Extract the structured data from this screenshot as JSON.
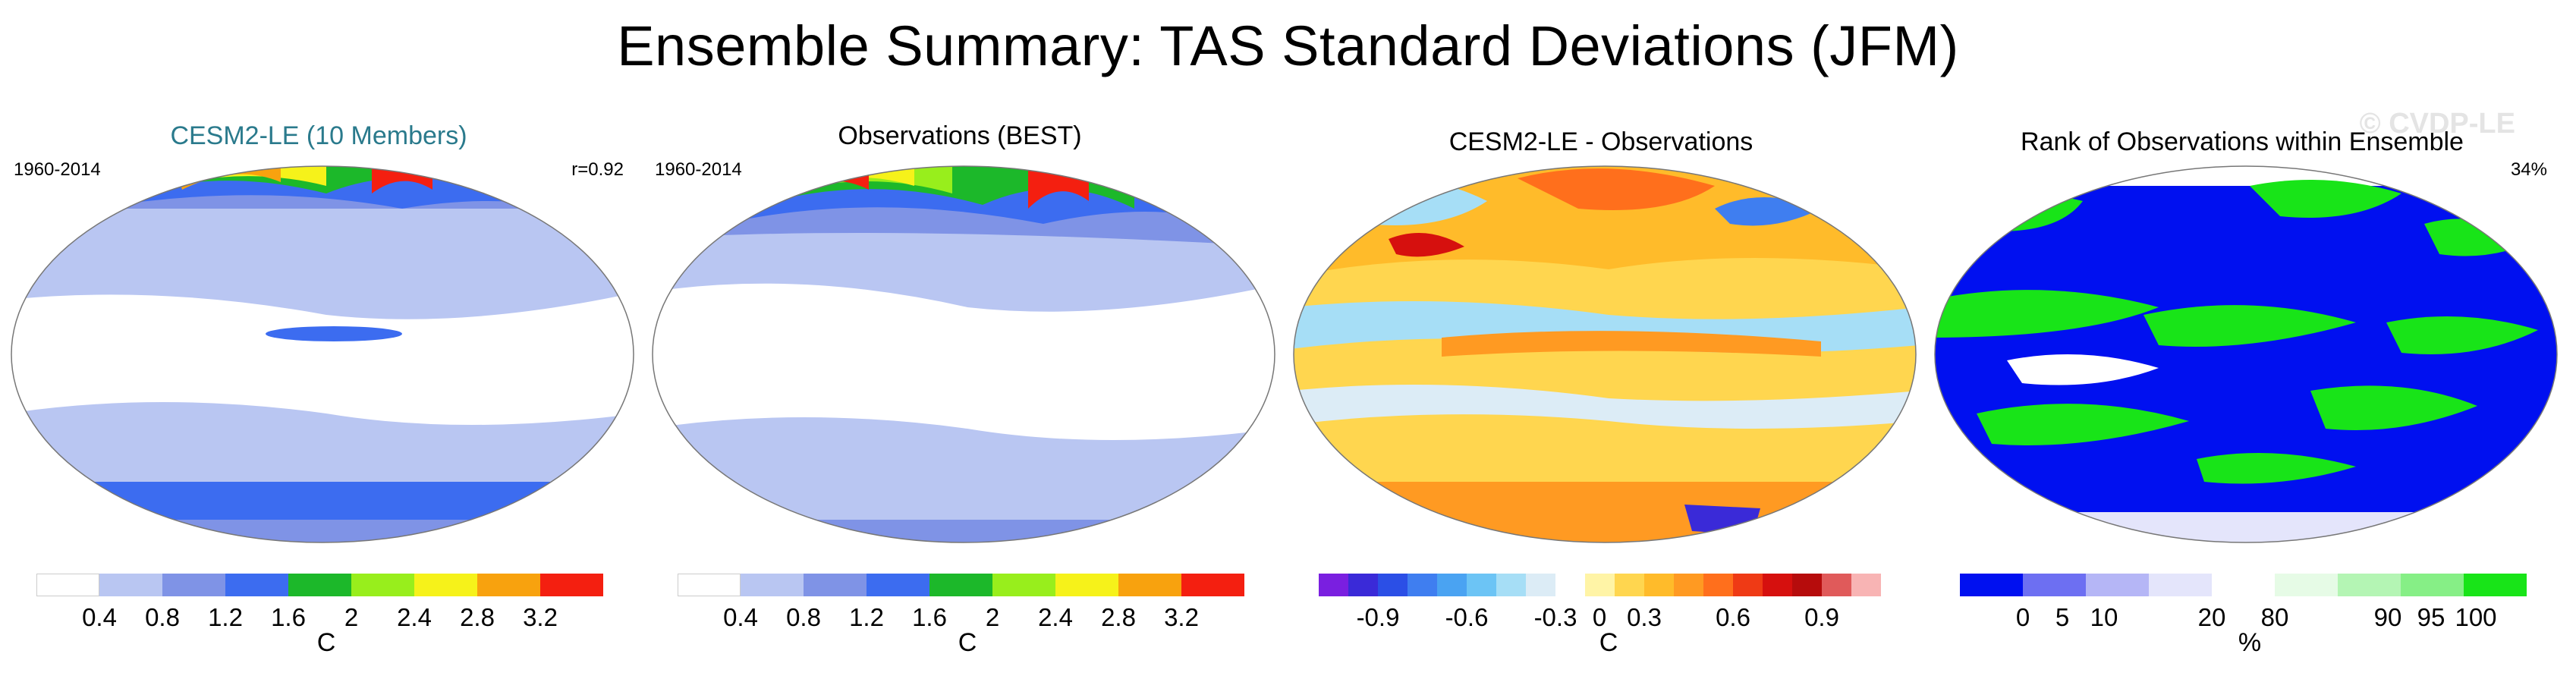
{
  "title": "Ensemble Summary: TAS Standard Deviations (JFM)",
  "watermark": "© CVDP-LE",
  "panels": [
    {
      "title": "CESM2-LE (10 Members)",
      "title_color": "#2a7a8c",
      "left_tag": "1960-2014",
      "right_tag": "r=0.92",
      "colorbar": {
        "colors": [
          "#ffffff",
          "#b9c6f2",
          "#7f93e6",
          "#3c6cf0",
          "#1cb82a",
          "#98ee1c",
          "#f6f21a",
          "#f8a20e",
          "#f41f10"
        ],
        "ticks": [
          "0.4",
          "0.8",
          "1.2",
          "1.6",
          "2",
          "2.4",
          "2.8",
          "3.2"
        ],
        "unit": "C"
      }
    },
    {
      "title": "Observations (BEST)",
      "left_tag": "1960-2014",
      "right_tag": "",
      "colorbar": {
        "colors": [
          "#ffffff",
          "#b9c6f2",
          "#7f93e6",
          "#3c6cf0",
          "#1cb82a",
          "#98ee1c",
          "#f6f21a",
          "#f8a20e",
          "#f41f10"
        ],
        "ticks": [
          "0.4",
          "0.8",
          "1.2",
          "1.6",
          "2",
          "2.4",
          "2.8",
          "3.2"
        ],
        "unit": "C"
      }
    },
    {
      "title": "CESM2-LE - Observations",
      "left_tag": "",
      "right_tag": "",
      "colorbar": {
        "colors": [
          "#7a1fe0",
          "#3a2ad8",
          "#2b4fe6",
          "#3f7ef0",
          "#4aa3f2",
          "#6cc4f5",
          "#a6def6",
          "#dcecf6",
          "#ffffff",
          "#fff4a6",
          "#ffd64f",
          "#ffbb2a",
          "#ff9a22",
          "#ff6f1c",
          "#ef3a15",
          "#d6100e",
          "#b60c0c",
          "#e05a5a",
          "#f8b4b4"
        ],
        "ticks": [
          "-0.9",
          "-0.6",
          "-0.3",
          "0",
          "0.3",
          "0.6",
          "0.9"
        ],
        "unit": "C"
      }
    },
    {
      "title": "Rank of Observations within Ensemble",
      "left_tag": "",
      "right_tag": "34%",
      "colorbar": {
        "colors": [
          "#0010f0",
          "#6d6ff2",
          "#b5b6f6",
          "#e4e5fb",
          "#ffffff",
          "#e6fbe6",
          "#b4f5b4",
          "#86ef86",
          "#18e418"
        ],
        "ticks": [
          "0",
          "5",
          "10",
          "20",
          "80",
          "90",
          "95",
          "100"
        ],
        "unit": "%"
      }
    }
  ]
}
